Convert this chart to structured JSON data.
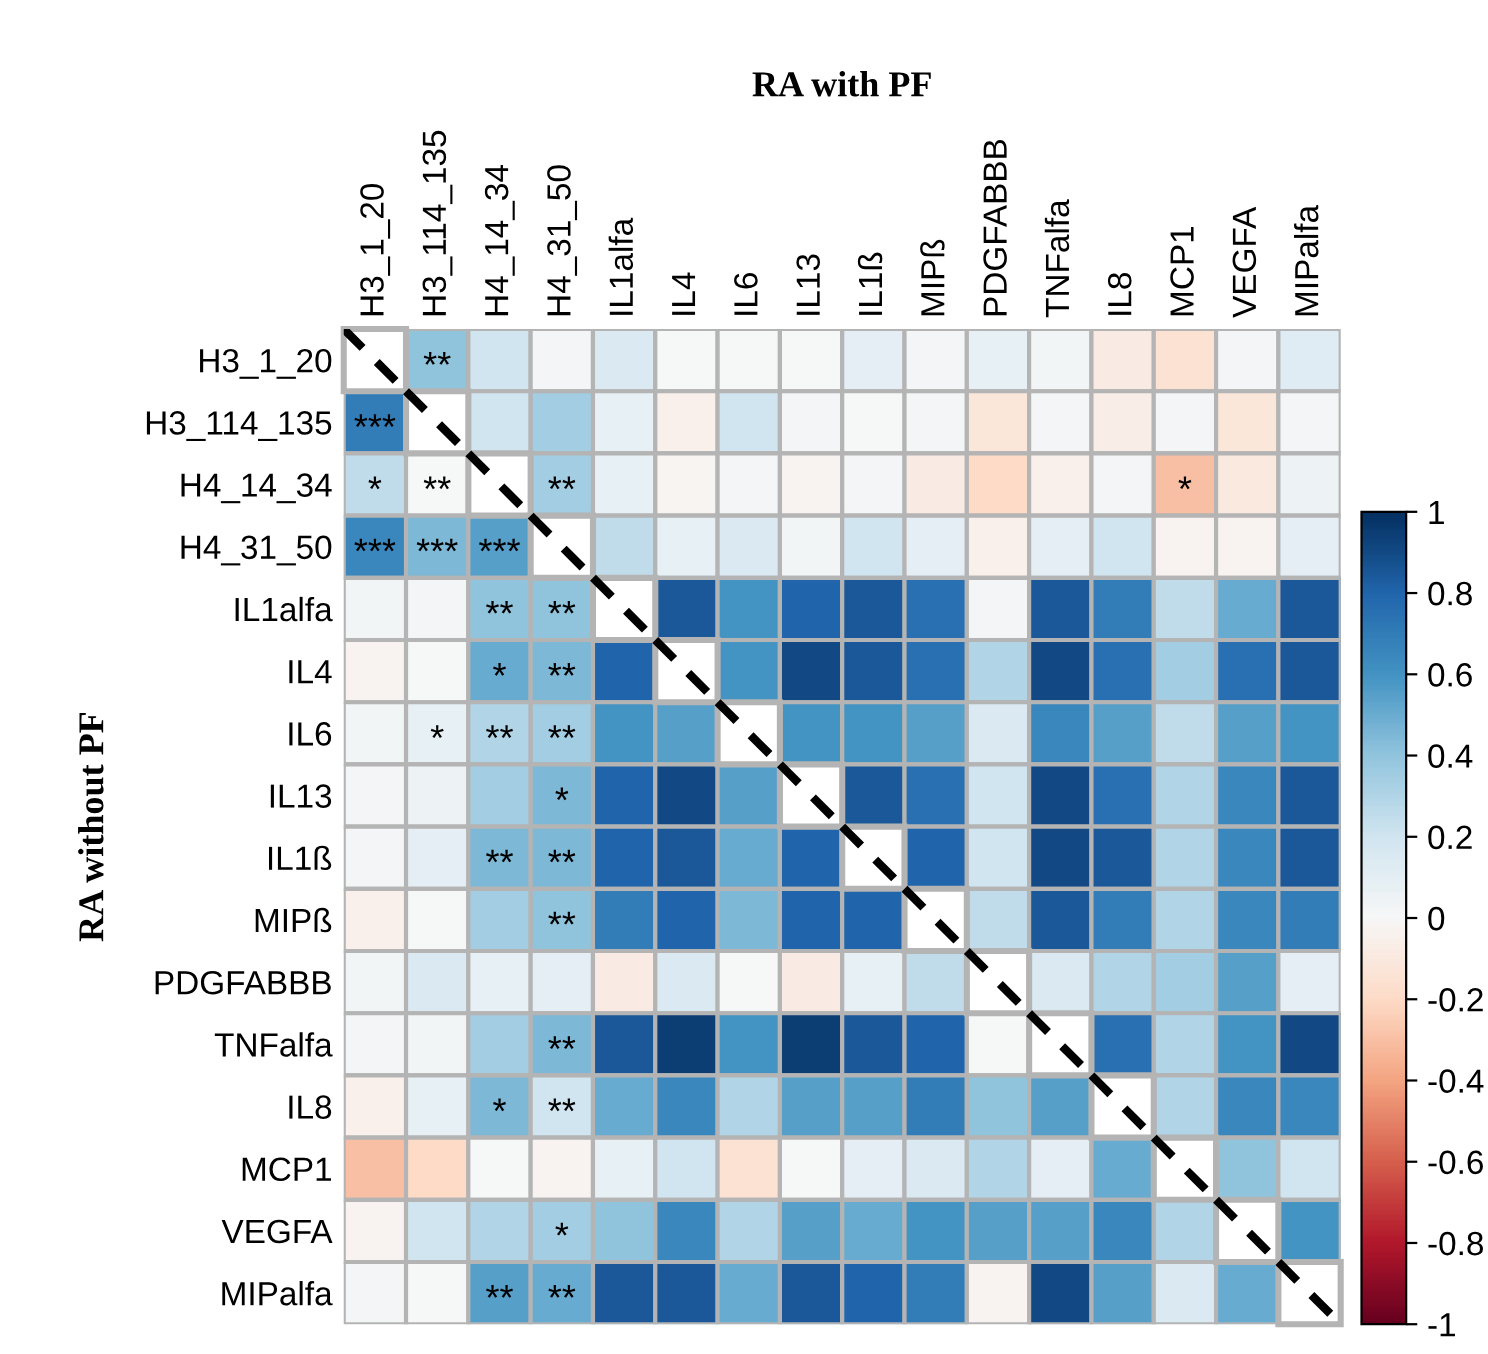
{
  "chart_data": {
    "type": "heatmap",
    "xlabel": "RA with PF",
    "ylabel": "RA without PF",
    "categories": [
      "H3_1_20",
      "H3_114_135",
      "H4_14_34",
      "H4_31_50",
      "IL1alfa",
      "IL4",
      "IL6",
      "IL13",
      "IL1ß",
      "MIPß",
      "PDGFABBB",
      "TNFalfa",
      "IL8",
      "MCP1",
      "VEGFA",
      "MIPalfa"
    ],
    "y_categories": [
      "H3_1_20",
      "H3_114_135",
      "H4_14_34",
      "H4_31_50",
      "IL1alfa",
      "IL4",
      "IL6",
      "IL13",
      "IL1ß",
      "MIPß",
      "PDGFABBB",
      "TNFalfa",
      "IL8",
      "MCP1",
      "VEGFA",
      "MIPalfa"
    ],
    "cells": [
      [
        null,
        0.4,
        0.2,
        0.02,
        0.15,
        0,
        0,
        0,
        0.1,
        0.02,
        0.08,
        0.03,
        -0.08,
        -0.15,
        0.02,
        0.12
      ],
      [
        0.7,
        null,
        0.2,
        0.35,
        0.08,
        -0.05,
        0.2,
        0.02,
        0,
        0.02,
        -0.12,
        0.02,
        -0.07,
        0.02,
        -0.12,
        0.02
      ],
      [
        0.25,
        0,
        null,
        0.35,
        0.08,
        -0.02,
        0.02,
        -0.03,
        0.02,
        -0.08,
        -0.2,
        -0.05,
        0.02,
        -0.3,
        -0.1,
        0.05
      ],
      [
        0.65,
        0.45,
        0.55,
        null,
        0.25,
        0.08,
        0.15,
        0.03,
        0.2,
        0.1,
        -0.05,
        0.1,
        0.2,
        -0.03,
        -0.03,
        0.1
      ],
      [
        0.03,
        0.02,
        0.4,
        0.4,
        null,
        0.85,
        0.6,
        0.8,
        0.85,
        0.75,
        0.02,
        0.85,
        0.7,
        0.25,
        0.5,
        0.85
      ],
      [
        -0.03,
        0,
        0.5,
        0.45,
        0.8,
        null,
        0.6,
        0.9,
        0.85,
        0.75,
        0.3,
        0.9,
        0.75,
        0.35,
        0.75,
        0.85
      ],
      [
        0.03,
        0.08,
        0.3,
        0.35,
        0.6,
        0.55,
        null,
        0.6,
        0.6,
        0.55,
        0.15,
        0.65,
        0.55,
        0.25,
        0.55,
        0.6
      ],
      [
        0.02,
        0.05,
        0.35,
        0.45,
        0.8,
        0.9,
        0.55,
        null,
        0.85,
        0.75,
        0.2,
        0.9,
        0.75,
        0.3,
        0.65,
        0.85
      ],
      [
        0.02,
        0.1,
        0.45,
        0.45,
        0.8,
        0.85,
        0.5,
        0.8,
        null,
        0.8,
        0.2,
        0.9,
        0.85,
        0.3,
        0.65,
        0.85
      ],
      [
        -0.05,
        0,
        0.35,
        0.4,
        0.7,
        0.8,
        0.45,
        0.8,
        0.8,
        null,
        0.25,
        0.85,
        0.7,
        0.3,
        0.65,
        0.7
      ],
      [
        0.03,
        0.15,
        0.08,
        0.1,
        -0.08,
        0.15,
        0,
        -0.08,
        0.08,
        0.25,
        null,
        0.15,
        0.3,
        0.35,
        0.55,
        0.1
      ],
      [
        0.02,
        0.03,
        0.35,
        0.45,
        0.85,
        0.95,
        0.6,
        0.95,
        0.85,
        0.8,
        0,
        null,
        0.75,
        0.3,
        0.6,
        0.9
      ],
      [
        -0.05,
        0.08,
        0.45,
        0.2,
        0.5,
        0.65,
        0.3,
        0.55,
        0.55,
        0.7,
        0.4,
        0.55,
        null,
        0.3,
        0.65,
        0.65
      ],
      [
        -0.3,
        -0.2,
        0,
        -0.03,
        0.08,
        0.2,
        -0.15,
        0,
        0.1,
        0.15,
        0.3,
        0.1,
        0.5,
        null,
        0.4,
        0.2
      ],
      [
        -0.03,
        0.2,
        0.3,
        0.35,
        0.4,
        0.65,
        0.3,
        0.55,
        0.5,
        0.6,
        0.55,
        0.55,
        0.65,
        0.3,
        null,
        0.6
      ],
      [
        0.02,
        0,
        0.55,
        0.5,
        0.85,
        0.85,
        0.5,
        0.85,
        0.8,
        0.7,
        -0.03,
        0.9,
        0.55,
        0.15,
        0.5,
        null
      ]
    ],
    "cell_labels": [
      [
        null,
        "**",
        null,
        null,
        null,
        null,
        null,
        null,
        null,
        null,
        null,
        null,
        null,
        null,
        null,
        null
      ],
      [
        "***",
        null,
        null,
        null,
        null,
        null,
        null,
        null,
        null,
        null,
        null,
        null,
        null,
        null,
        null,
        null
      ],
      [
        "*",
        "**",
        null,
        "**",
        null,
        null,
        null,
        null,
        null,
        null,
        null,
        null,
        null,
        "*",
        null,
        null
      ],
      [
        "***",
        "***",
        "***",
        null,
        null,
        null,
        null,
        null,
        null,
        null,
        null,
        null,
        null,
        null,
        null,
        null
      ],
      [
        null,
        null,
        "**",
        "**",
        null,
        null,
        null,
        null,
        null,
        null,
        null,
        null,
        null,
        null,
        null,
        null
      ],
      [
        null,
        null,
        "*",
        "**",
        null,
        null,
        null,
        null,
        null,
        null,
        null,
        null,
        null,
        null,
        null,
        null
      ],
      [
        null,
        "*",
        "**",
        "**",
        null,
        null,
        null,
        null,
        null,
        null,
        null,
        null,
        null,
        null,
        null,
        null
      ],
      [
        null,
        null,
        null,
        "*",
        null,
        null,
        null,
        null,
        null,
        null,
        null,
        null,
        null,
        null,
        null,
        null
      ],
      [
        null,
        null,
        "**",
        "**",
        null,
        null,
        null,
        null,
        null,
        null,
        null,
        null,
        null,
        null,
        null,
        null
      ],
      [
        null,
        null,
        null,
        "**",
        null,
        null,
        null,
        null,
        null,
        null,
        null,
        null,
        null,
        null,
        null,
        null
      ],
      [
        null,
        null,
        null,
        null,
        null,
        null,
        null,
        null,
        null,
        null,
        null,
        null,
        null,
        null,
        null,
        null
      ],
      [
        null,
        null,
        null,
        "**",
        null,
        null,
        null,
        null,
        null,
        null,
        null,
        null,
        null,
        null,
        null,
        null
      ],
      [
        null,
        null,
        "*",
        "**",
        null,
        null,
        null,
        null,
        null,
        null,
        null,
        null,
        null,
        null,
        null,
        null
      ],
      [
        null,
        null,
        null,
        null,
        null,
        null,
        null,
        null,
        null,
        null,
        null,
        null,
        null,
        null,
        null,
        null
      ],
      [
        null,
        null,
        null,
        "*",
        null,
        null,
        null,
        null,
        null,
        null,
        null,
        null,
        null,
        null,
        null,
        null
      ],
      [
        null,
        null,
        "**",
        "**",
        null,
        null,
        null,
        null,
        null,
        null,
        null,
        null,
        null,
        null,
        null,
        null
      ]
    ],
    "clim": [
      -1,
      1
    ],
    "cticks": [
      {
        "value": -1,
        "label": "-1"
      },
      {
        "value": -0.8,
        "label": "-0.8"
      },
      {
        "value": -0.6,
        "label": "-0.6"
      },
      {
        "value": -0.4,
        "label": "-0.4"
      },
      {
        "value": -0.2,
        "label": "-0.2"
      },
      0,
      0.2,
      0.4,
      0.6,
      0.8,
      1
    ]
  }
}
